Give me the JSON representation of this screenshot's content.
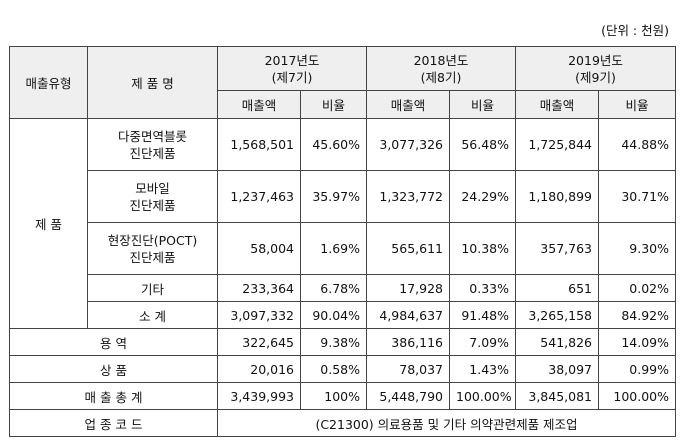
{
  "unit_note": "(단위 : 천원)",
  "headers": {
    "sales_type": "매출유형",
    "product_name": "제 품 명",
    "years": [
      {
        "year": "2017년도",
        "period": "(제7기)"
      },
      {
        "year": "2018년도",
        "period": "(제8기)"
      },
      {
        "year": "2019년도",
        "period": "(제9기)"
      }
    ],
    "sales": "매출액",
    "ratio": "비율"
  },
  "product_group": "제 품",
  "product_rows": [
    {
      "name1": "다중면역블롯",
      "name2": "진단제품",
      "cells": [
        "1,568,501",
        "45.60%",
        "3,077,326",
        "56.48%",
        "1,725,844",
        "44.88%"
      ]
    },
    {
      "name1": "모바일",
      "name2": "진단제품",
      "cells": [
        "1,237,463",
        "35.97%",
        "1,323,772",
        "24.29%",
        "1,180,899",
        "30.71%"
      ]
    },
    {
      "name1": "현장진단(POCT)",
      "name2": "진단제품",
      "cells": [
        "58,004",
        "1.69%",
        "565,611",
        "10.38%",
        "357,763",
        "9.30%"
      ]
    },
    {
      "name1": "기타",
      "name2": "",
      "cells": [
        "233,364",
        "6.78%",
        "17,928",
        "0.33%",
        "651",
        "0.02%"
      ]
    },
    {
      "name1": "소 계",
      "name2": "",
      "cells": [
        "3,097,332",
        "90.04%",
        "4,984,637",
        "91.48%",
        "3,265,158",
        "84.92%"
      ]
    }
  ],
  "other_rows": [
    {
      "label": "용 역",
      "cells": [
        "322,645",
        "9.38%",
        "386,116",
        "7.09%",
        "541,826",
        "14.09%"
      ]
    },
    {
      "label": "상 품",
      "cells": [
        "20,016",
        "0.58%",
        "78,037",
        "1.43%",
        "38,097",
        "0.99%"
      ]
    },
    {
      "label": "매 출 총 계",
      "cells": [
        "3,439,993",
        "100%",
        "5,448,790",
        "100.00%",
        "3,845,081",
        "100.00%"
      ]
    }
  ],
  "industry": {
    "label": "업 종 코 드",
    "value": "(C21300) 의료용품 및 기타 의약관련제품 제조업"
  }
}
